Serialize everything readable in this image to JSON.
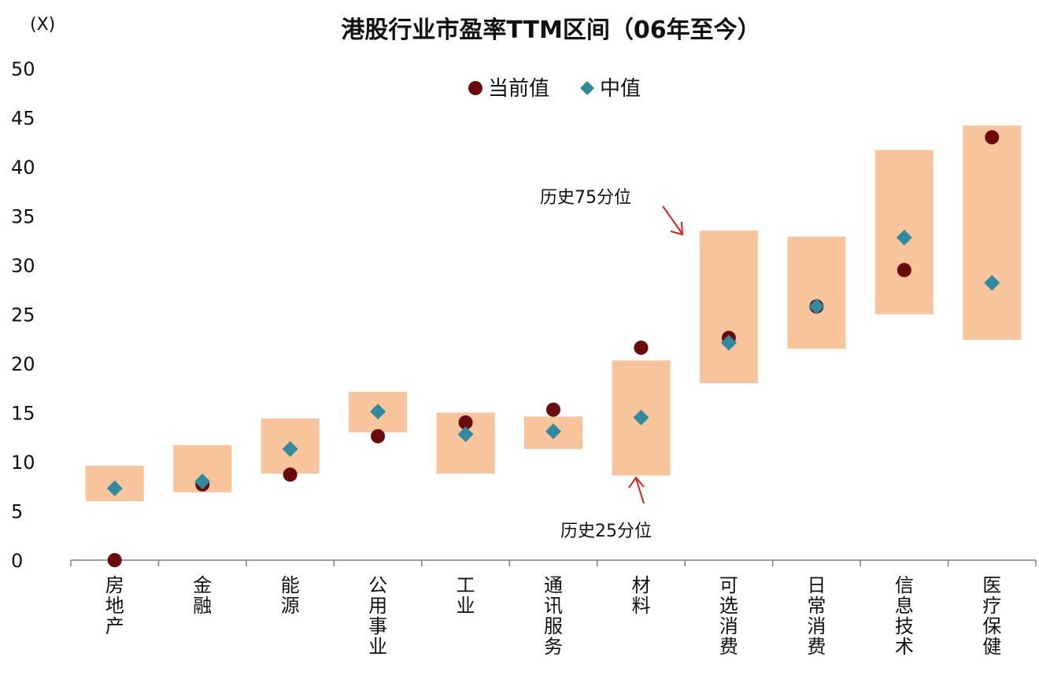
{
  "chart_data": {
    "type": "range-bar-with-markers",
    "title": "港股行业市盈率TTM区间（06年至今）",
    "unit_label": "(X)",
    "ylim": [
      0,
      50
    ],
    "yticks": [
      0,
      5,
      10,
      15,
      20,
      25,
      30,
      35,
      40,
      45,
      50
    ],
    "categories": [
      "房地产",
      "金融",
      "能源",
      "公用事业",
      "工业",
      "通讯服务",
      "材料",
      "可选消费",
      "日常消费",
      "信息技术",
      "医疗保健"
    ],
    "ranges": {
      "name_low": "历史25分位",
      "name_high": "历史75分位",
      "low": [
        6.0,
        6.9,
        8.8,
        13.0,
        8.8,
        11.3,
        8.6,
        18.0,
        21.5,
        25.0,
        22.4
      ],
      "high": [
        9.6,
        11.7,
        14.4,
        17.1,
        15.0,
        14.6,
        20.3,
        33.5,
        32.9,
        41.7,
        44.2
      ]
    },
    "series": [
      {
        "name": "当前值",
        "marker": "circle",
        "color": "#6b0a0a",
        "values": [
          0,
          7.7,
          8.7,
          12.6,
          14.0,
          15.3,
          21.6,
          22.6,
          25.8,
          29.5,
          43.0
        ]
      },
      {
        "name": "中值",
        "marker": "diamond",
        "color": "#2e8ba0",
        "values": [
          7.3,
          8.0,
          11.3,
          15.1,
          12.8,
          13.1,
          14.5,
          22.1,
          25.8,
          32.8,
          28.2
        ]
      }
    ],
    "range_color": "#f8c49c",
    "legend_position": "top-center",
    "annotations": [
      {
        "text": "历史75分位",
        "target_category": "可选消费",
        "target": "high"
      },
      {
        "text": "历史25分位",
        "target_category": "材料",
        "target": "low"
      }
    ],
    "arrow_color": "#e0201a"
  }
}
